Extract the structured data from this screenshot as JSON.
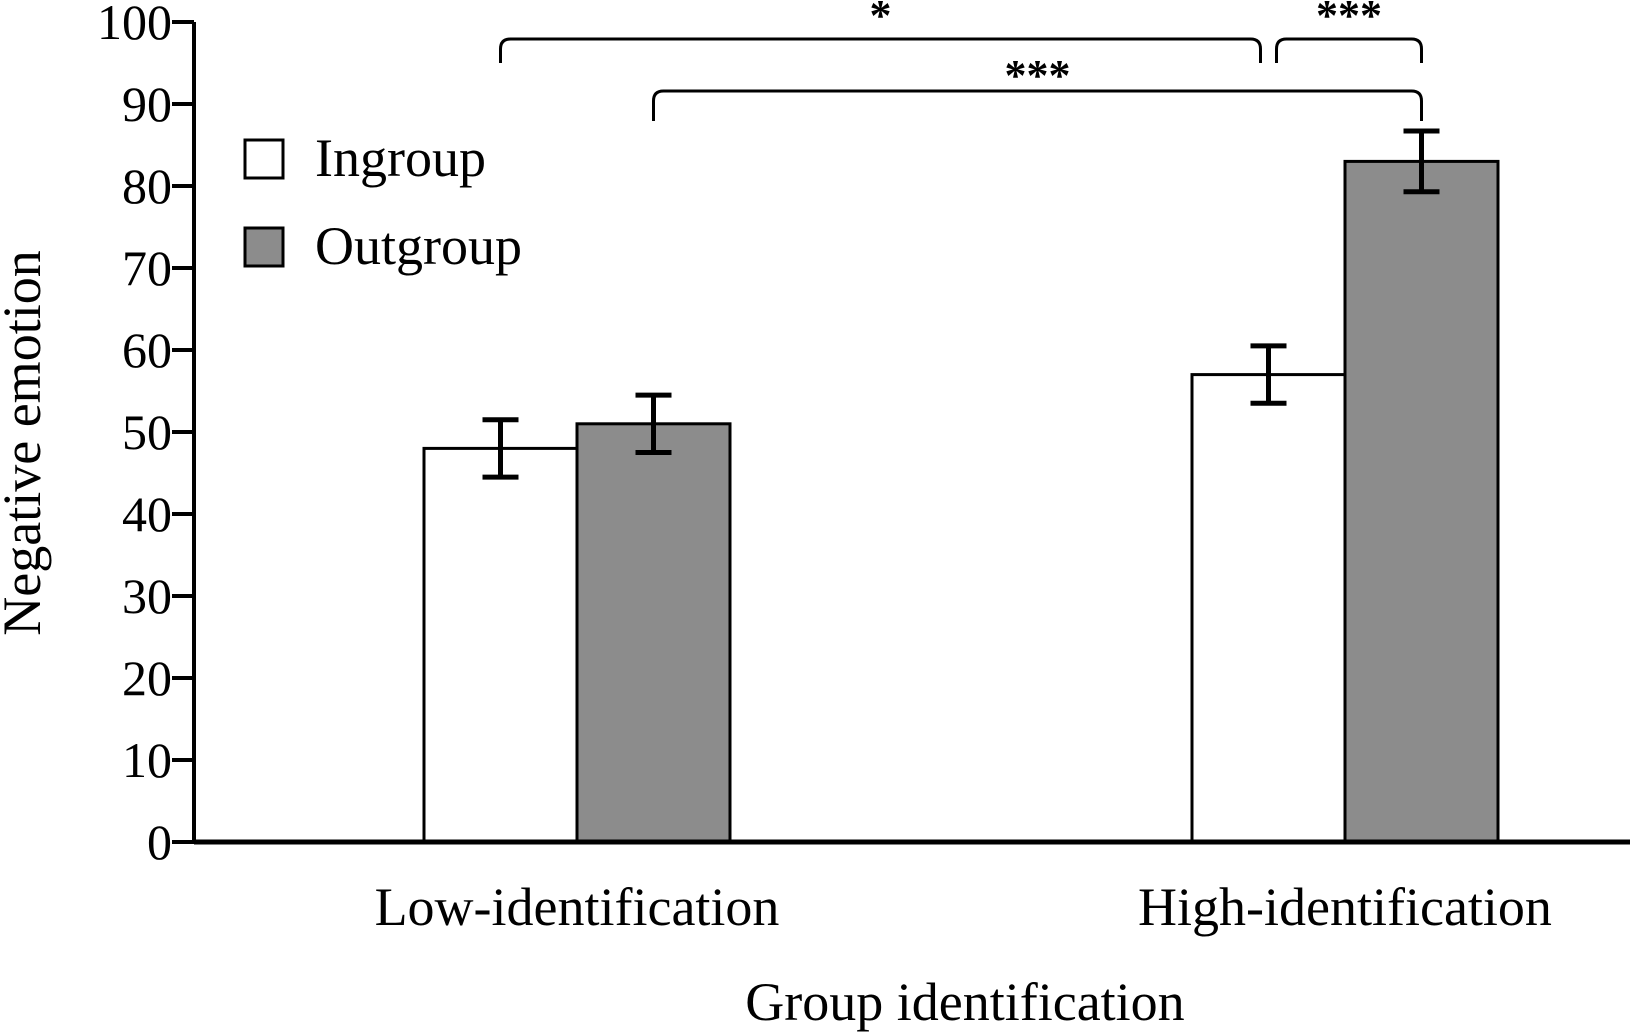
{
  "chart_data": {
    "type": "bar",
    "xlabel": "Group identification",
    "ylabel": "Negative emotion",
    "ylim": [
      0,
      100
    ],
    "yticks": [
      0,
      10,
      20,
      30,
      40,
      50,
      60,
      70,
      80,
      90,
      100
    ],
    "categories": [
      "Low-identification",
      "High-identification"
    ],
    "series": [
      {
        "name": "Ingroup",
        "color": "#ffffff",
        "values": [
          48,
          57
        ],
        "errors": [
          3.5,
          3.5
        ]
      },
      {
        "name": "Outgroup",
        "color": "#8c8c8c",
        "values": [
          51,
          83
        ],
        "errors": [
          3.5,
          3.7
        ]
      }
    ],
    "legend": {
      "placement": "top-left"
    },
    "grid": false,
    "significance": [
      {
        "label": "*",
        "from": {
          "category": 0,
          "series": 0
        },
        "to": {
          "category": 1,
          "series": 0
        }
      },
      {
        "label": "***",
        "from": {
          "category": 0,
          "series": 1
        },
        "to": {
          "category": 1,
          "series": 1
        }
      },
      {
        "label": "***",
        "from": {
          "category": 1,
          "series": 0
        },
        "to": {
          "category": 1,
          "series": 1
        }
      }
    ]
  }
}
